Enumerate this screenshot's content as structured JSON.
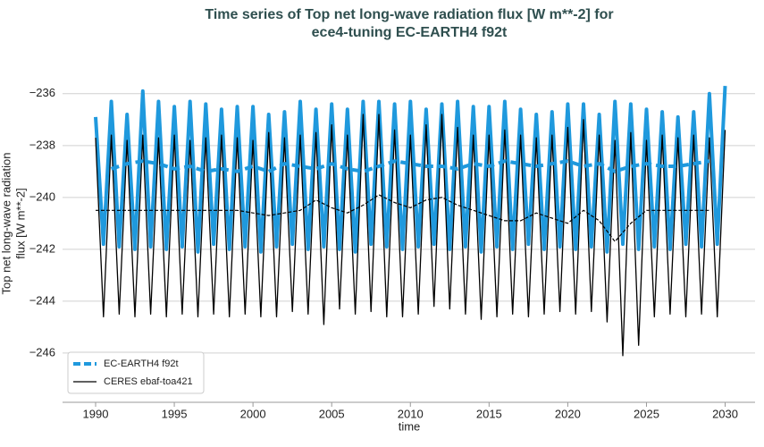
{
  "chart_data": {
    "type": "line",
    "title": [
      "Time series of Top net long-wave radiation flux [W m**-2] for",
      "ece4-tuning EC-EARTH4 f92t"
    ],
    "xlabel": "time",
    "ylabel": [
      "Top net long-wave radiation",
      "flux [W m**-2]"
    ],
    "xlim": [
      1987.9,
      2031.9
    ],
    "ylim": [
      -247.9,
      -234.8
    ],
    "xticks": [
      1990,
      1995,
      2000,
      2005,
      2010,
      2015,
      2020,
      2025,
      2030
    ],
    "yticks": [
      {
        "value": -246,
        "label": "−246"
      },
      {
        "value": -244,
        "label": "−244"
      },
      {
        "value": -242,
        "label": "−242"
      },
      {
        "value": -240,
        "label": "−240"
      },
      {
        "value": -238,
        "label": "−238"
      },
      {
        "value": -236,
        "label": "−236"
      }
    ],
    "grid": true,
    "legend": "lower left",
    "x": [
      1990,
      1990.5,
      1991,
      1991.5,
      1992,
      1992.5,
      1993,
      1993.5,
      1994,
      1994.5,
      1995,
      1995.5,
      1996,
      1996.5,
      1997,
      1997.5,
      1998,
      1998.5,
      1999,
      1999.5,
      2000,
      2000.5,
      2001,
      2001.5,
      2002,
      2002.5,
      2003,
      2003.5,
      2004,
      2004.5,
      2005,
      2005.5,
      2006,
      2006.5,
      2007,
      2007.5,
      2008,
      2008.5,
      2009,
      2009.5,
      2010,
      2010.5,
      2011,
      2011.5,
      2012,
      2012.5,
      2013,
      2013.5,
      2014,
      2014.5,
      2015,
      2015.5,
      2016,
      2016.5,
      2017,
      2017.5,
      2018,
      2018.5,
      2019,
      2019.5,
      2020,
      2020.5,
      2021,
      2021.5,
      2022,
      2022.5,
      2023,
      2023.5,
      2024,
      2024.5,
      2025,
      2025.5,
      2026,
      2026.5,
      2027,
      2027.5,
      2028,
      2028.5,
      2029,
      2029.5,
      2030
    ],
    "series": [
      {
        "name": "EC-EARTH4 f92t",
        "color": "#1f99dd",
        "width": 4,
        "dash": "none",
        "values": [
          -236.9,
          -241.8,
          -236.3,
          -241.9,
          -236.8,
          -242.0,
          -235.9,
          -241.9,
          -236.3,
          -242.0,
          -236.5,
          -241.9,
          -236.3,
          -242.1,
          -236.4,
          -241.8,
          -236.6,
          -242.0,
          -236.5,
          -241.9,
          -236.5,
          -242.1,
          -236.8,
          -241.9,
          -236.7,
          -241.8,
          -236.3,
          -242.0,
          -236.6,
          -241.9,
          -236.4,
          -242.0,
          -236.6,
          -242.1,
          -236.3,
          -241.8,
          -236.3,
          -241.9,
          -236.4,
          -242.0,
          -236.3,
          -241.9,
          -236.6,
          -241.8,
          -236.4,
          -242.0,
          -236.3,
          -241.9,
          -236.5,
          -242.1,
          -236.5,
          -241.9,
          -236.3,
          -242.0,
          -236.6,
          -241.8,
          -236.8,
          -242.0,
          -236.7,
          -241.9,
          -236.4,
          -242.0,
          -236.4,
          -241.9,
          -236.8,
          -242.1,
          -236.3,
          -241.8,
          -236.4,
          -242.0,
          -236.6,
          -241.9,
          -236.7,
          -242.0,
          -236.9,
          -241.8,
          -236.7,
          -241.9,
          -236.0,
          -241.8,
          -235.7
        ]
      },
      {
        "name": "CERES ebaf-toa421",
        "color": "#000000",
        "width": 1.3,
        "dash": "none",
        "values": [
          -237.7,
          -244.6,
          -237.6,
          -244.5,
          -237.8,
          -244.6,
          -237.6,
          -244.5,
          -237.7,
          -244.6,
          -237.6,
          -244.5,
          -237.8,
          -244.6,
          -237.7,
          -244.5,
          -237.6,
          -244.6,
          -237.7,
          -244.5,
          -237.8,
          -244.6,
          -237.5,
          -244.6,
          -237.7,
          -244.4,
          -237.6,
          -244.5,
          -237.5,
          -244.9,
          -237.2,
          -244.3,
          -237.6,
          -244.5,
          -236.8,
          -244.4,
          -236.8,
          -244.6,
          -237.4,
          -244.6,
          -237.6,
          -244.5,
          -237.2,
          -244.2,
          -236.8,
          -244.3,
          -237.3,
          -244.5,
          -237.6,
          -244.7,
          -237.6,
          -244.6,
          -237.4,
          -244.5,
          -237.6,
          -244.6,
          -237.7,
          -244.5,
          -237.6,
          -244.4,
          -237.3,
          -244.5,
          -237.0,
          -244.4,
          -237.6,
          -244.8,
          -237.8,
          -246.1,
          -237.5,
          -245.7,
          -237.8,
          -244.6,
          -237.6,
          -244.5,
          -237.7,
          -244.6,
          -237.6,
          -244.5,
          -237.7,
          -244.6,
          -237.4
        ]
      },
      {
        "color": "#1f99dd",
        "width": 4,
        "dash": "9 5",
        "x": [
          1991,
          1992,
          1993,
          1994,
          1995,
          1996,
          1997,
          1998,
          1999,
          2000,
          2001,
          2002,
          2003,
          2004,
          2005,
          2006,
          2007,
          2008,
          2009,
          2010,
          2011,
          2012,
          2013,
          2014,
          2015,
          2016,
          2017,
          2018,
          2019,
          2020,
          2021,
          2022,
          2023,
          2024,
          2025,
          2026,
          2027,
          2028,
          2029
        ],
        "values": [
          -238.9,
          -238.7,
          -238.6,
          -238.7,
          -238.9,
          -238.8,
          -239.0,
          -238.9,
          -239.0,
          -238.8,
          -239.0,
          -238.7,
          -238.8,
          -238.9,
          -238.7,
          -238.9,
          -239.0,
          -238.8,
          -238.6,
          -238.7,
          -238.8,
          -238.8,
          -238.9,
          -238.7,
          -238.8,
          -238.6,
          -238.7,
          -238.8,
          -238.7,
          -238.6,
          -238.8,
          -238.7,
          -239.0,
          -238.8,
          -238.7,
          -238.8,
          -238.8,
          -238.7,
          -238.6
        ]
      },
      {
        "color": "#000000",
        "width": 1.2,
        "dash": "4 2",
        "x": [
          1990,
          1991,
          1992,
          1993,
          1994,
          1995,
          1996,
          1997,
          1998,
          1999,
          2000,
          2001,
          2002,
          2003,
          2004,
          2005,
          2006,
          2007,
          2008,
          2009,
          2010,
          2011,
          2012,
          2013,
          2014,
          2015,
          2016,
          2017,
          2018,
          2019,
          2020,
          2021,
          2022,
          2023,
          2024,
          2025,
          2026,
          2027,
          2028,
          2029
        ],
        "values": [
          -240.5,
          -240.5,
          -240.5,
          -240.5,
          -240.5,
          -240.5,
          -240.5,
          -240.5,
          -240.5,
          -240.5,
          -240.6,
          -240.7,
          -240.6,
          -240.5,
          -240.1,
          -240.4,
          -240.6,
          -240.3,
          -239.9,
          -240.2,
          -240.4,
          -240.1,
          -240.0,
          -240.3,
          -240.5,
          -240.7,
          -240.9,
          -240.9,
          -240.6,
          -240.8,
          -241.0,
          -240.5,
          -240.9,
          -241.7,
          -241.0,
          -240.5,
          -240.5,
          -240.5,
          -240.5,
          -240.5
        ]
      }
    ]
  }
}
